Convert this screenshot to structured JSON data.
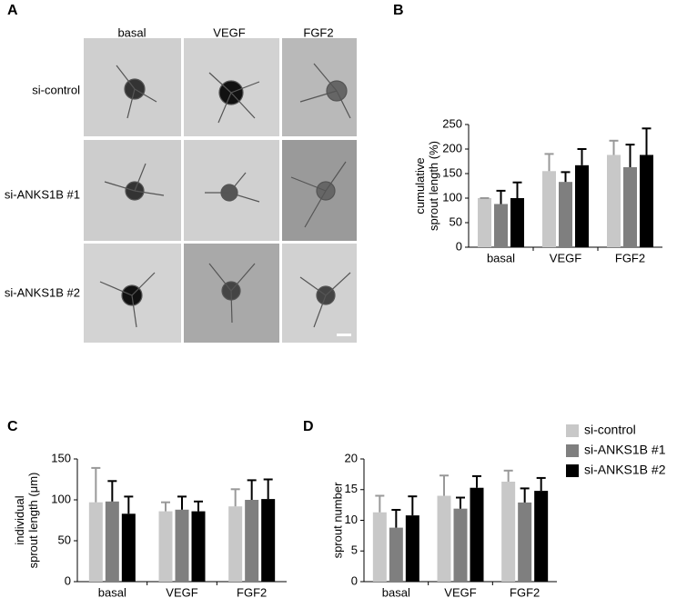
{
  "image_panel": {
    "panel": "A",
    "columns": [
      "basal",
      "VEGF",
      "FGF2"
    ],
    "rows": [
      "si-control",
      "si-ANKS1B #1",
      "si-ANKS1B #2"
    ]
  },
  "chart_data": [
    {
      "type": "bar",
      "panel": "B",
      "ylabel": [
        "cumulative",
        "sprout length (%)"
      ],
      "categories": [
        "basal",
        "VEGF",
        "FGF2"
      ],
      "series": [
        {
          "color": "#c8c8c8",
          "values": [
            100,
            155,
            188
          ],
          "errors": [
            0,
            35,
            29
          ]
        },
        {
          "color": "#7f7f7f",
          "values": [
            88,
            133,
            163
          ],
          "errors": [
            27,
            20,
            46
          ]
        },
        {
          "color": "#000000",
          "values": [
            100,
            167,
            188
          ],
          "errors": [
            32,
            33,
            54
          ]
        }
      ],
      "ylim": [
        0,
        250
      ],
      "yticks": [
        0,
        50,
        100,
        150,
        200,
        250
      ]
    },
    {
      "type": "bar",
      "panel": "C",
      "ylabel": [
        "individual",
        "sprout length (μm)"
      ],
      "categories": [
        "basal",
        "VEGF",
        "FGF2"
      ],
      "series": [
        {
          "color": "#c8c8c8",
          "values": [
            97,
            86,
            92
          ],
          "errors": [
            42,
            11,
            21
          ]
        },
        {
          "color": "#7f7f7f",
          "values": [
            98,
            88,
            100
          ],
          "errors": [
            25,
            16,
            24
          ]
        },
        {
          "color": "#000000",
          "values": [
            83,
            86,
            101
          ],
          "errors": [
            21,
            12,
            24
          ]
        }
      ],
      "ylim": [
        0,
        150
      ],
      "yticks": [
        0,
        50,
        100,
        150
      ]
    },
    {
      "type": "bar",
      "panel": "D",
      "ylabel": [
        "sprout number"
      ],
      "categories": [
        "basal",
        "VEGF",
        "FGF2"
      ],
      "series": [
        {
          "name": "si-control",
          "color": "#c8c8c8",
          "values": [
            11.3,
            14,
            16.3
          ],
          "errors": [
            2.7,
            3.3,
            1.8
          ]
        },
        {
          "name": "si-ANKS1B #1",
          "color": "#7f7f7f",
          "values": [
            8.8,
            11.9,
            12.9
          ],
          "errors": [
            2.9,
            1.8,
            2.3
          ]
        },
        {
          "name": "si-ANKS1B #2",
          "color": "#000000",
          "values": [
            10.8,
            15.3,
            14.8
          ],
          "errors": [
            3.1,
            1.9,
            2.1
          ]
        }
      ],
      "ylim": [
        0,
        20
      ],
      "yticks": [
        0,
        5,
        10,
        15,
        20
      ]
    }
  ]
}
